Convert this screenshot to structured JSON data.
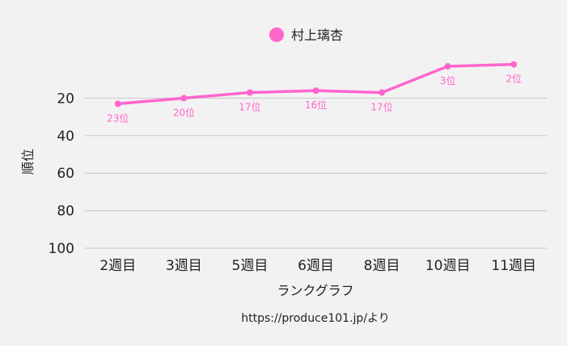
{
  "chart_data": {
    "type": "line",
    "categories": [
      "2週目",
      "3週目",
      "5週目",
      "6週目",
      "8週目",
      "10週目",
      "11週目"
    ],
    "series": [
      {
        "name": "村上璃杏",
        "values": [
          23,
          20,
          17,
          16,
          17,
          3,
          2
        ],
        "labels": [
          "23位",
          "20位",
          "17位",
          "16位",
          "17位",
          "3位",
          "2位"
        ],
        "color": "#ff66cc"
      }
    ],
    "xlabel": "ランクグラフ",
    "ylabel": "順位",
    "ylim": [
      0,
      100
    ],
    "y_reversed": true,
    "y_ticks": [
      "20",
      "40",
      "60",
      "80",
      "100"
    ],
    "grid": true,
    "legend_position": "top-center",
    "source": "https://produce101.jp/より"
  }
}
